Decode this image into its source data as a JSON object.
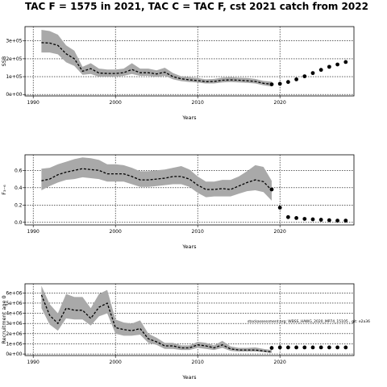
{
  "title": "TAC F = 1575 in 2021, TAC C = TAC F, cst 2021 catch from 2022",
  "chart_data": [
    {
      "type": "line",
      "xlabel": "Years",
      "ylabel": "SSB",
      "xlim": [
        1989,
        2029
      ],
      "ylim": [
        -8000,
        380000
      ],
      "xticks": [
        1990,
        2000,
        2010,
        2020
      ],
      "xtick_labels": [
        "1990",
        "2000",
        "2010",
        "2020"
      ],
      "yticks": [
        0,
        100000,
        200000,
        300000
      ],
      "ytick_labels": [
        "0e+00",
        "1e+05",
        "2e+05",
        "3e+05"
      ],
      "grid": true,
      "series": [
        {
          "role": "estimate",
          "x": [
            1991,
            1992,
            1993,
            1994,
            1995,
            1996,
            1997,
            1998,
            1999,
            2000,
            2001,
            2002,
            2003,
            2004,
            2005,
            2006,
            2007,
            2008,
            2009,
            2010,
            2011,
            2012,
            2013,
            2014,
            2015,
            2016,
            2017,
            2018,
            2019
          ],
          "values": [
            290000,
            288000,
            275000,
            228000,
            200000,
            130000,
            145000,
            120000,
            118000,
            118000,
            122000,
            140000,
            122000,
            122000,
            115000,
            125000,
            100000,
            88000,
            82000,
            78000,
            72000,
            73000,
            80000,
            82000,
            80000,
            77000,
            73000,
            63000,
            58000
          ],
          "lower": [
            235000,
            235000,
            225000,
            180000,
            160000,
            110000,
            115000,
            100000,
            100000,
            100000,
            105000,
            115000,
            105000,
            105000,
            98000,
            105000,
            85000,
            75000,
            70000,
            67000,
            62000,
            62000,
            68000,
            70000,
            68000,
            65000,
            62000,
            52000,
            45000
          ],
          "upper": [
            362000,
            355000,
            335000,
            275000,
            245000,
            155000,
            175000,
            145000,
            140000,
            140000,
            145000,
            175000,
            145000,
            145000,
            135000,
            150000,
            120000,
            102000,
            96000,
            92000,
            85000,
            87000,
            95000,
            97000,
            94000,
            92000,
            87000,
            76000,
            72000
          ]
        },
        {
          "role": "projection",
          "x": [
            2019,
            2020,
            2021,
            2022,
            2023,
            2024,
            2025,
            2026,
            2027,
            2028
          ],
          "values": [
            57000,
            60000,
            70000,
            85000,
            102000,
            120000,
            138000,
            155000,
            168000,
            182000
          ]
        }
      ]
    },
    {
      "type": "line",
      "xlabel": "Years",
      "ylabel": "F₃₋₆",
      "xlim": [
        1989,
        2029
      ],
      "ylim": [
        -0.03,
        0.78
      ],
      "xticks": [
        1990,
        2000,
        2010,
        2020
      ],
      "xtick_labels": [
        "1990",
        "2000",
        "2010",
        "2020"
      ],
      "yticks": [
        0,
        0.2,
        0.4,
        0.6
      ],
      "ytick_labels": [
        "0.0",
        "0.2",
        "0.4",
        "0.6"
      ],
      "grid": true,
      "series": [
        {
          "role": "estimate",
          "x": [
            1991,
            1992,
            1993,
            1994,
            1995,
            1996,
            1997,
            1998,
            1999,
            2000,
            2001,
            2002,
            2003,
            2004,
            2005,
            2006,
            2007,
            2008,
            2009,
            2010,
            2011,
            2012,
            2013,
            2014,
            2015,
            2016,
            2017,
            2018,
            2019
          ],
          "values": [
            0.48,
            0.5,
            0.55,
            0.58,
            0.6,
            0.62,
            0.61,
            0.6,
            0.56,
            0.56,
            0.56,
            0.53,
            0.49,
            0.49,
            0.5,
            0.51,
            0.53,
            0.53,
            0.5,
            0.43,
            0.38,
            0.38,
            0.39,
            0.38,
            0.42,
            0.46,
            0.49,
            0.47,
            0.37
          ],
          "lower": [
            0.37,
            0.42,
            0.46,
            0.49,
            0.5,
            0.52,
            0.51,
            0.5,
            0.47,
            0.47,
            0.47,
            0.44,
            0.41,
            0.41,
            0.42,
            0.43,
            0.44,
            0.44,
            0.41,
            0.34,
            0.29,
            0.3,
            0.3,
            0.3,
            0.33,
            0.36,
            0.37,
            0.35,
            0.25
          ],
          "upper": [
            0.62,
            0.63,
            0.67,
            0.7,
            0.73,
            0.75,
            0.74,
            0.72,
            0.67,
            0.67,
            0.66,
            0.63,
            0.59,
            0.59,
            0.6,
            0.61,
            0.63,
            0.65,
            0.61,
            0.53,
            0.47,
            0.47,
            0.49,
            0.49,
            0.53,
            0.59,
            0.66,
            0.64,
            0.48
          ]
        },
        {
          "role": "projection",
          "x": [
            2019,
            2020,
            2021,
            2022,
            2023,
            2024,
            2025,
            2026,
            2027,
            2028
          ],
          "values": [
            0.38,
            0.17,
            0.06,
            0.05,
            0.04,
            0.035,
            0.03,
            0.025,
            0.02,
            0.02
          ]
        }
      ]
    },
    {
      "type": "line",
      "xlabel": "Years",
      "ylabel": "Recruitment age 0",
      "xlim": [
        1989,
        2029
      ],
      "ylim": [
        -150000,
        6900000
      ],
      "xticks": [
        1990,
        2000,
        2010,
        2020
      ],
      "xtick_labels": [
        "1990",
        "2000",
        "2010",
        "2020"
      ],
      "yticks": [
        0,
        1000000,
        2000000,
        3000000,
        4000000,
        5000000,
        6000000
      ],
      "ytick_labels": [
        "0e+00",
        "1e+06",
        "2e+06",
        "3e+06",
        "4e+06",
        "5e+06",
        "6e+06"
      ],
      "grid": true,
      "annotation": "stockassessment.org: WBSS_HAWG_2020_MP74_15105 , git: e2a36",
      "series": [
        {
          "role": "estimate",
          "x": [
            1991,
            1992,
            1993,
            1994,
            1995,
            1996,
            1997,
            1998,
            1999,
            2000,
            2001,
            2002,
            2003,
            2004,
            2005,
            2006,
            2007,
            2008,
            2009,
            2010,
            2011,
            2012,
            2013,
            2014,
            2015,
            2016,
            2017,
            2018,
            2019
          ],
          "values": [
            5800000,
            3800000,
            3000000,
            4500000,
            4300000,
            4300000,
            3500000,
            4600000,
            5000000,
            2600000,
            2400000,
            2300000,
            2500000,
            1500000,
            1200000,
            800000,
            800000,
            600000,
            600000,
            900000,
            800000,
            600000,
            900000,
            500000,
            400000,
            400000,
            400000,
            300000,
            200000
          ],
          "lower": [
            4500000,
            2900000,
            2300000,
            3500000,
            3400000,
            3400000,
            2800000,
            3700000,
            4000000,
            2000000,
            1800000,
            1800000,
            1900000,
            1100000,
            900000,
            500000,
            500000,
            400000,
            400000,
            600000,
            500000,
            400000,
            600000,
            300000,
            250000,
            250000,
            250000,
            180000,
            100000
          ],
          "upper": [
            6700000,
            4900000,
            4000000,
            5900000,
            5600000,
            5600000,
            4500000,
            5900000,
            6300000,
            3400000,
            3100000,
            3000000,
            3300000,
            2000000,
            1600000,
            1100000,
            1100000,
            850000,
            850000,
            1200000,
            1100000,
            850000,
            1300000,
            750000,
            600000,
            600000,
            650000,
            500000,
            400000
          ]
        },
        {
          "role": "projection",
          "x": [
            2019,
            2020,
            2021,
            2022,
            2023,
            2024,
            2025,
            2026,
            2027,
            2028
          ],
          "values": [
            600000,
            650000,
            650000,
            650000,
            650000,
            650000,
            650000,
            650000,
            650000,
            650000
          ]
        }
      ]
    }
  ]
}
